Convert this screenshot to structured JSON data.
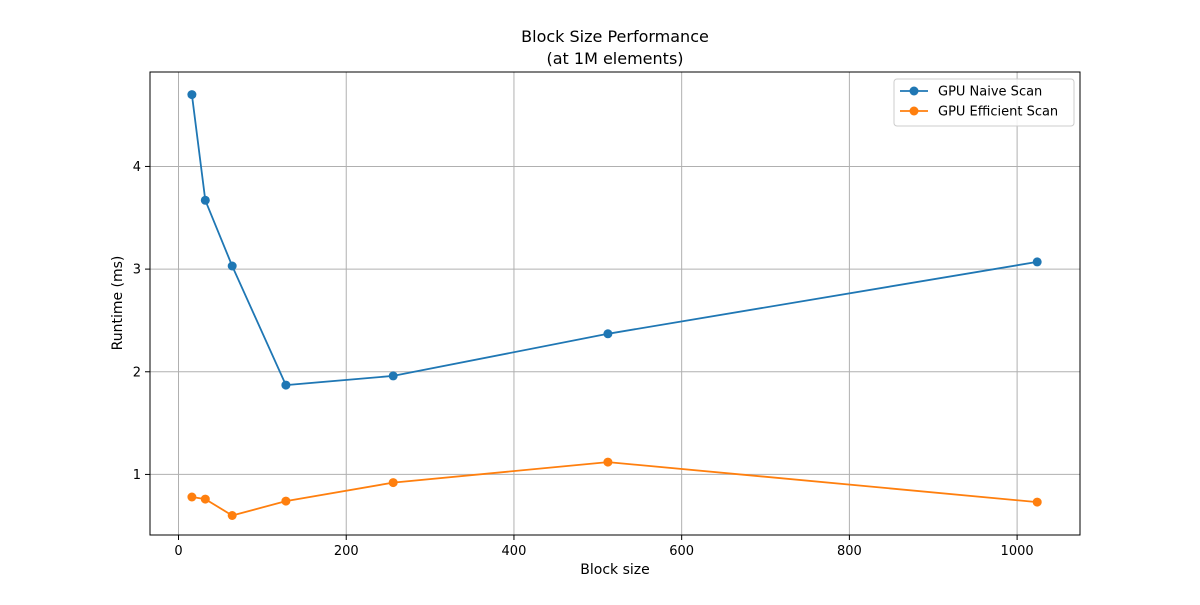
{
  "chart_data": {
    "type": "line",
    "title": "Block Size Performance",
    "subtitle": "(at 1M elements)",
    "xlabel": "Block size",
    "ylabel": "Runtime (ms)",
    "xlim": [
      -34,
      1075
    ],
    "ylim": [
      0.41,
      4.92
    ],
    "xticks": [
      0,
      200,
      400,
      600,
      800,
      1000
    ],
    "yticks": [
      1,
      2,
      3,
      4
    ],
    "grid": true,
    "legend_position": "top-right",
    "x": [
      16,
      32,
      64,
      128,
      256,
      512,
      1024
    ],
    "series": [
      {
        "name": "GPU Naive Scan",
        "color": "#1f77b4",
        "marker": "circle",
        "values": [
          4.7,
          3.67,
          3.03,
          1.87,
          1.96,
          2.37,
          3.07
        ]
      },
      {
        "name": "GPU Efficient Scan",
        "color": "#ff7f0e",
        "marker": "circle",
        "values": [
          0.78,
          0.76,
          0.6,
          0.74,
          0.92,
          1.12,
          0.73
        ]
      }
    ]
  }
}
